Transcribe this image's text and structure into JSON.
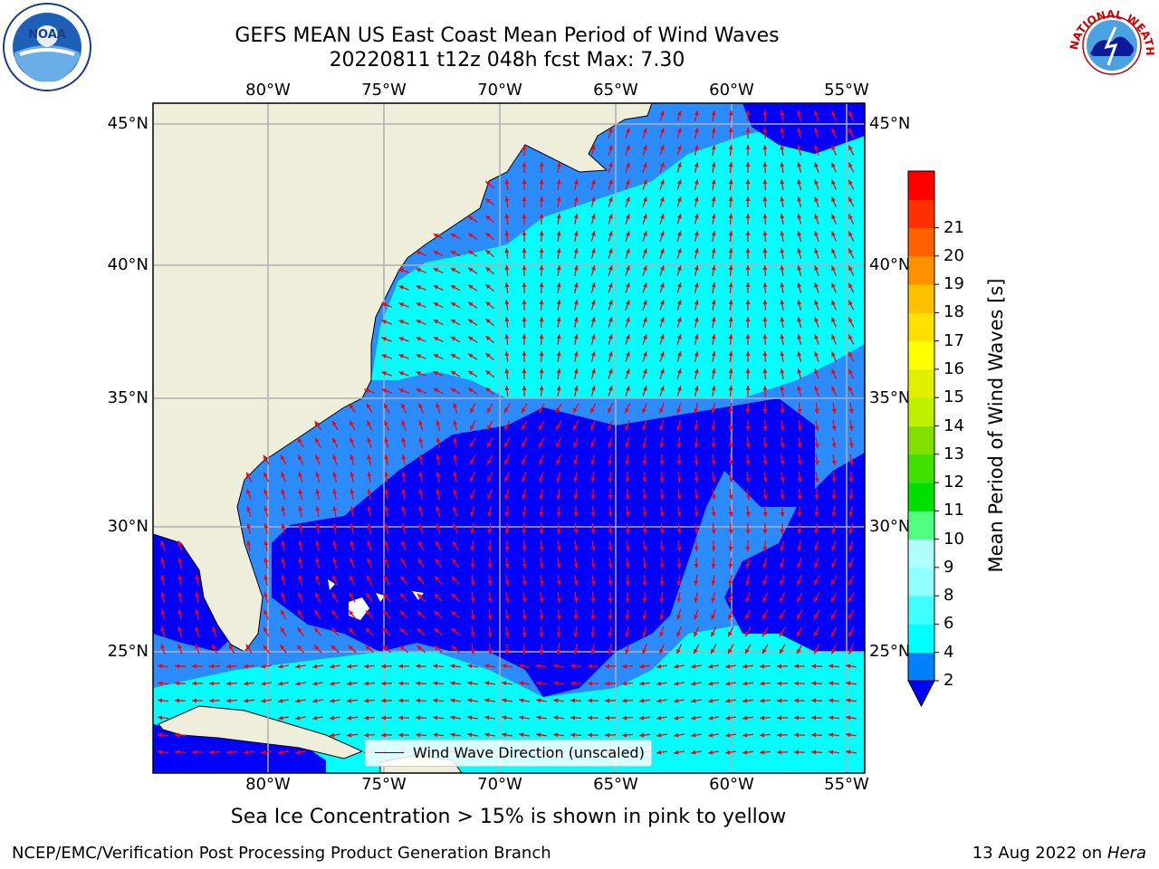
{
  "title": {
    "line1": "GEFS MEAN US East Coast Mean Period of Wind Waves",
    "line2": "20220811 t12z 048h fcst   Max: 7.30"
  },
  "map": {
    "lon_ticks": [
      "80°W",
      "75°W",
      "70°W",
      "65°W",
      "60°W",
      "55°W"
    ],
    "lat_ticks": [
      "45°N",
      "40°N",
      "35°N",
      "30°N",
      "25°N"
    ],
    "legend_label": "Wind Wave Direction (unscaled)",
    "colors": {
      "land": "#efeedb",
      "ocean_2_4": "#0000ff",
      "ocean_4_6": "#2a8cff",
      "ocean_6_8": "#00ffff",
      "arrows": "#ff0000",
      "grid": "#b0b0b0"
    }
  },
  "colorbar": {
    "label": "Mean Period of Wind Waves [s]",
    "tick_labels": [
      "2",
      "4",
      "6",
      "8",
      "9",
      "10",
      "11",
      "12",
      "13",
      "14",
      "15",
      "16",
      "17",
      "18",
      "19",
      "20",
      "21"
    ],
    "colors": [
      "#0080ff",
      "#00ffff",
      "#40ffff",
      "#90ffff",
      "#b0ffff",
      "#50ff80",
      "#00e000",
      "#40e000",
      "#80e000",
      "#c0f000",
      "#e0f000",
      "#ffff00",
      "#ffe000",
      "#ffc000",
      "#ff9000",
      "#ff6000",
      "#ff3000",
      "#ff0000"
    ],
    "extend_color": "#0000ff"
  },
  "notes": {
    "sea_ice": "Sea Ice Concentration > 15% is shown in pink to yellow",
    "credit": "NCEP/EMC/Verification Post Processing Product Generation Branch",
    "date": "13 Aug 2022 on",
    "host": "Hera"
  },
  "logos": {
    "left": "noara-logo",
    "left_text": "NOAA",
    "right": "nws-logo",
    "right_text": "NATIONAL WEATHER SERVICE"
  }
}
